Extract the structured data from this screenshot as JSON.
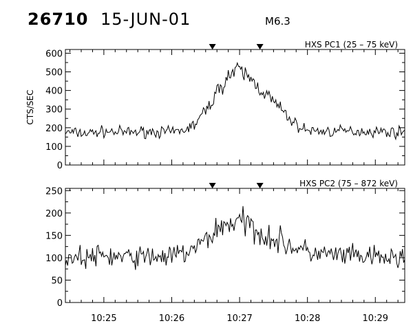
{
  "header": {
    "event_id": "26710",
    "date": "15-JUN-01",
    "flare_class": "M6.3"
  },
  "chart_data": [
    {
      "type": "line",
      "title": "HXS PC1 (25 – 75 keV)",
      "ylabel": "CTS/SEC",
      "xlabel": "",
      "ylim": [
        0,
        620
      ],
      "yticks": [
        0,
        100,
        200,
        300,
        400,
        500,
        600
      ],
      "xlim": [
        "10:24:26",
        "10:29:26"
      ],
      "xtick_times": [
        "10:25:00",
        "10:26:00",
        "10:27:00",
        "10:28:00",
        "10:29:00"
      ],
      "xtick_labels": [
        "10:25",
        "10:26",
        "10:27",
        "10:28",
        "10:29"
      ],
      "markers": [
        "10:26:36",
        "10:27:18"
      ],
      "series": [
        {
          "x": [
            "10:24:26",
            "10:24:45",
            "10:25:00",
            "10:25:20",
            "10:25:40",
            "10:26:00",
            "10:26:10",
            "10:26:20",
            "10:26:30",
            "10:26:40",
            "10:26:50",
            "10:27:00",
            "10:27:10",
            "10:27:20",
            "10:27:30",
            "10:27:40",
            "10:27:50",
            "10:28:00",
            "10:28:20",
            "10:28:40",
            "10:29:00",
            "10:29:26"
          ],
          "y": [
            175,
            170,
            180,
            175,
            180,
            175,
            185,
            215,
            290,
            390,
            480,
            510,
            460,
            400,
            340,
            275,
            215,
            185,
            180,
            182,
            180,
            175
          ]
        }
      ]
    },
    {
      "type": "line",
      "title": "HXS PC2 (75 – 872 keV)",
      "ylabel": "",
      "xlabel": "",
      "ylim": [
        0,
        255
      ],
      "yticks": [
        0,
        50,
        100,
        150,
        200,
        250
      ],
      "xlim": [
        "10:24:26",
        "10:29:26"
      ],
      "xtick_times": [
        "10:25:00",
        "10:26:00",
        "10:27:00",
        "10:28:00",
        "10:29:00"
      ],
      "xtick_labels": [
        "10:25",
        "10:26",
        "10:27",
        "10:28",
        "10:29"
      ],
      "markers": [
        "10:26:36",
        "10:27:18"
      ],
      "series": [
        {
          "x": [
            "10:24:26",
            "10:24:45",
            "10:25:00",
            "10:25:20",
            "10:25:40",
            "10:26:00",
            "10:26:10",
            "10:26:20",
            "10:26:30",
            "10:26:40",
            "10:26:50",
            "10:27:00",
            "10:27:10",
            "10:27:20",
            "10:27:30",
            "10:27:40",
            "10:27:50",
            "10:28:00",
            "10:28:20",
            "10:28:40",
            "10:29:00",
            "10:29:26"
          ],
          "y": [
            102,
            100,
            105,
            100,
            103,
            102,
            110,
            118,
            140,
            163,
            178,
            180,
            172,
            155,
            142,
            132,
            122,
            112,
            106,
            103,
            100,
            98
          ]
        }
      ]
    }
  ]
}
